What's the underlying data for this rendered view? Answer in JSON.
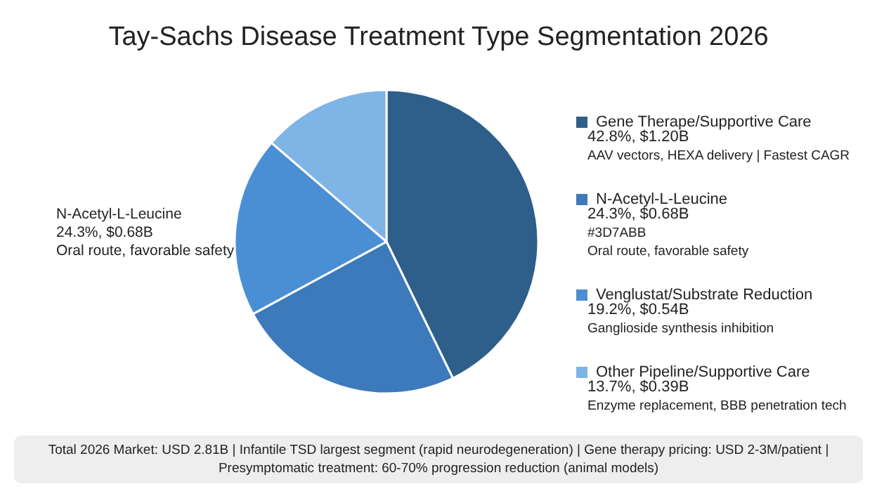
{
  "chart_data": {
    "type": "pie",
    "title": "Tay-Sachs Disease Treatment Type Segmentation 2026",
    "categories": [
      "Gene Therape/Supportive Care",
      "N-Acetyl-L-Leucine",
      "Venglustat/Substrate Reduction",
      "Other Pipeline/Supportive Care"
    ],
    "values": [
      42.8,
      24.3,
      19.2,
      13.7
    ],
    "colors": [
      "#2e5f8a",
      "#3d7abb",
      "#4a8fd4",
      "#7fb4e6"
    ],
    "value_labels": [
      "42.8%, $1.20B",
      "24.3%, $0.68B",
      "19.2%, $0.54B",
      "13.7%, $0.39B"
    ],
    "legend": "right",
    "annotations": [
      "AAV vectors, HEXA delivery | Fastest CAGR",
      "#3D7ABB\nOral route, favorable safety",
      "Ganglioside synthesis inhibition",
      "Enzyme replacement, BBB penetration tech",
      "N-Acetyl-L-Leucine\n24.3%, $0.68B\nOral route, favorable safety",
      "Total 2026 Market: USD 2.81B | Infantile TSD largest segment (rapid neurodegeneration) | Gene therapy pricing: USD 2-3M/patient |\nPresymptomatic treatment: 60-70% progression reduction (animal models)"
    ]
  }
}
